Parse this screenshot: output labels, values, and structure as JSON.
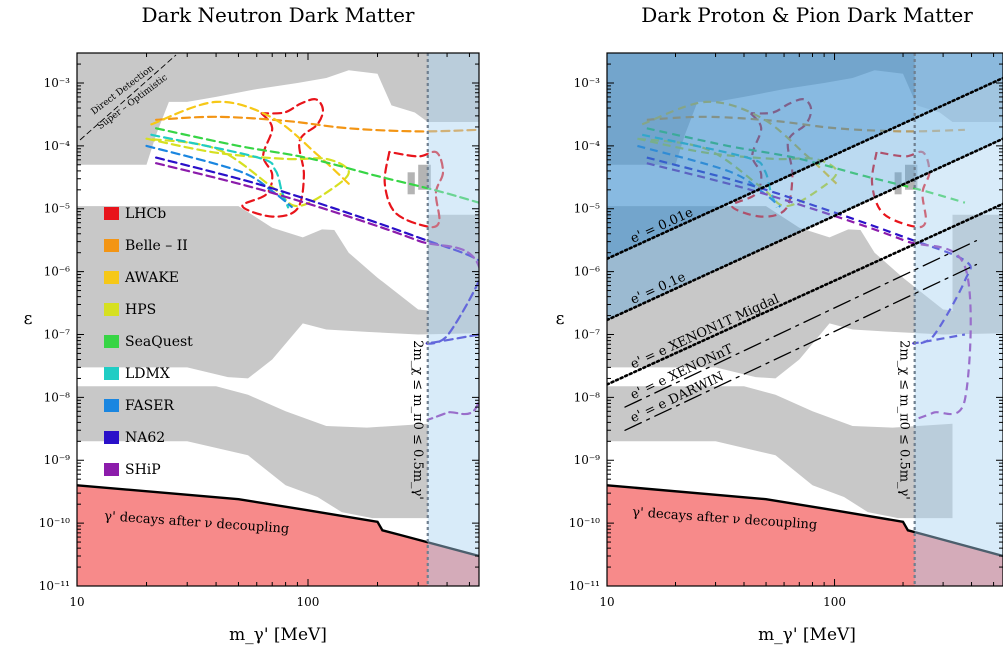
{
  "chart_data": [
    {
      "type": "line",
      "title": "Dark Neutron Dark Matter",
      "xlabel": "m_γ' [MeV]",
      "ylabel": "ε",
      "xscale": "log",
      "yscale": "log",
      "xlim": [
        10,
        550
      ],
      "ylim": [
        1e-11,
        0.003
      ],
      "x_tick_labels": [
        "10",
        "100"
      ],
      "y_tick_labels": [
        "10⁻¹¹",
        "10⁻¹⁰",
        "10⁻⁹",
        "10⁻⁸",
        "10⁻⁷",
        "10⁻⁶",
        "10⁻⁵",
        "10⁻⁴",
        "10⁻³"
      ],
      "legend_position": "left",
      "vertical_line": {
        "x": 330,
        "label": "2m_χ ≤ m_π0 ≤ 0.5m_γ'"
      },
      "annotations": {
        "direct_detection_line1": "Direct Detection",
        "direct_detection_line2": "Super – Optimistic",
        "decay_label": "γ' decays after ν decoupling"
      },
      "series": [
        {
          "name": "LHCb",
          "color": "#e8141b",
          "points": [
            [
              63,
              0.00033
            ],
            [
              70,
              0.00019
            ],
            [
              64,
              7e-05
            ],
            [
              70,
              3.5e-05
            ],
            [
              66,
              1.7e-05
            ],
            [
              52,
              1.1e-05
            ],
            [
              70,
              7.5e-06
            ],
            [
              90,
              1e-05
            ],
            [
              96,
              3.4e-05
            ],
            [
              92,
              0.00012
            ],
            [
              110,
              0.00022
            ],
            [
              116,
              0.00038
            ],
            [
              108,
              0.00055
            ],
            [
              93,
              0.00047
            ],
            [
              79,
              0.00034
            ],
            [
              63,
              0.00033
            ]
          ]
        },
        {
          "name": "LHCb",
          "color": "#e8141b",
          "points": [
            [
              225,
              8e-05
            ],
            [
              215,
              2.5e-05
            ],
            [
              240,
              8.5e-06
            ],
            [
              330,
              5.2e-06
            ],
            [
              370,
              6.3e-06
            ],
            [
              358,
              1.8e-05
            ],
            [
              384,
              3.8e-05
            ],
            [
              360,
              7.9e-05
            ],
            [
              300,
              6.8e-05
            ],
            [
              225,
              8e-05
            ]
          ]
        },
        {
          "name": "Belle – II",
          "color": "#f39514",
          "points": [
            [
              22,
              0.00026
            ],
            [
              40,
              0.00029
            ],
            [
              80,
              0.00025
            ],
            [
              150,
              0.00019
            ],
            [
              300,
              0.00017
            ],
            [
              550,
              0.00018
            ]
          ]
        },
        {
          "name": "AWAKE",
          "color": "#f6c817",
          "points": [
            [
              21,
              0.00022
            ],
            [
              40,
              0.0005
            ],
            [
              70,
              0.00028
            ],
            [
              110,
              7.2e-05
            ],
            [
              150,
              2.5e-05
            ]
          ]
        },
        {
          "name": "HPS",
          "color": "#d6e021",
          "points": [
            [
              20,
              0.00013
            ],
            [
              40,
              7.8e-05
            ],
            [
              80,
              6.2e-05
            ],
            [
              120,
              6.2e-05
            ],
            [
              150,
              4e-05
            ],
            [
              130,
              2.2e-05
            ],
            [
              90,
              1.1e-05
            ],
            [
              70,
              2.2e-05
            ],
            [
              40,
              9e-05
            ],
            [
              20,
              0.00013
            ]
          ]
        },
        {
          "name": "SeaQuest",
          "color": "#37d545",
          "points": [
            [
              22,
              0.00019
            ],
            [
              50,
              0.0001
            ],
            [
              100,
              6.4e-05
            ],
            [
              200,
              3.3e-05
            ],
            [
              350,
              2e-05
            ],
            [
              550,
              1.25e-05
            ]
          ]
        },
        {
          "name": "LDMX",
          "color": "#20cdc4",
          "points": [
            [
              21,
              0.00015
            ],
            [
              60,
              6.6e-05
            ],
            [
              72,
              4.2e-05
            ],
            [
              77,
              1.9e-05
            ],
            [
              82,
              1.05e-05
            ]
          ]
        },
        {
          "name": "FASER",
          "color": "#1a86e0",
          "points": [
            [
              20,
              0.0001
            ],
            [
              50,
              4e-05
            ],
            [
              70,
              1.9e-05
            ],
            [
              85,
              1.07e-05
            ]
          ]
        },
        {
          "name": "NA62",
          "color": "#2a10c9",
          "points": [
            [
              22,
              6.5e-05
            ],
            [
              60,
              2.5e-05
            ],
            [
              150,
              8.5e-06
            ],
            [
              300,
              3.5e-06
            ],
            [
              550,
              1.5e-06
            ],
            [
              550,
              7.2e-07
            ],
            [
              400,
              9.5e-08
            ],
            [
              330,
              7.3e-08
            ],
            [
              550,
              1e-07
            ]
          ]
        },
        {
          "name": "SHiP",
          "color": "#8c1cab",
          "points": [
            [
              22,
              5.3e-05
            ],
            [
              60,
              2.1e-05
            ],
            [
              150,
              7.5e-06
            ],
            [
              300,
              3.1e-06
            ],
            [
              550,
              1.2e-06
            ],
            [
              550,
              9.2e-09
            ],
            [
              400,
              5.7e-09
            ],
            [
              330,
              4.4e-09
            ]
          ]
        }
      ]
    },
    {
      "type": "line",
      "title": "Dark Proton & Pion Dark Matter",
      "xlabel": "m_γ' [MeV]",
      "ylabel": "ε",
      "xscale": "log",
      "yscale": "log",
      "xlim": [
        10,
        550
      ],
      "ylim": [
        1e-11,
        0.003
      ],
      "x_tick_labels": [
        "10",
        "100"
      ],
      "y_tick_labels": [
        "10⁻¹¹",
        "10⁻¹⁰",
        "10⁻⁹",
        "10⁻⁸",
        "10⁻⁷",
        "10⁻⁶",
        "10⁻⁵",
        "10⁻⁴",
        "10⁻³"
      ],
      "vertical_line": {
        "x": 225,
        "label": "2m_χ ≤ m_π0 ≤ 0.5m_γ'"
      },
      "annotations": {
        "decay_label": "γ' decays after ν decoupling"
      },
      "series": [
        {
          "name": "e' = 0.01e",
          "color": "#000000",
          "points": [
            [
              10,
              1.6e-06
            ],
            [
              550,
              0.0012
            ]
          ]
        },
        {
          "name": "e' = 0.1e",
          "color": "#000000",
          "points": [
            [
              10,
              1.7e-07
            ],
            [
              550,
              0.00013
            ]
          ]
        },
        {
          "name": "e' = e XENON1T Migdal",
          "color": "#000000",
          "points": [
            [
              10,
              1.6e-08
            ],
            [
              550,
              1.2e-05
            ]
          ]
        },
        {
          "name": "e' = e XENONnT",
          "color": "#000000",
          "points": [
            [
              12,
              7e-09
            ],
            [
              420,
              3.1e-06
            ]
          ]
        },
        {
          "name": "e' = e DARWIN",
          "color": "#000000",
          "points": [
            [
              12,
              3e-09
            ],
            [
              420,
              1.3e-06
            ]
          ]
        }
      ]
    }
  ],
  "legend_colors": [
    "#e8141b",
    "#f39514",
    "#f6c817",
    "#d6e021",
    "#37d545",
    "#20cdc4",
    "#1a86e0",
    "#2a10c9",
    "#8c1cab"
  ]
}
